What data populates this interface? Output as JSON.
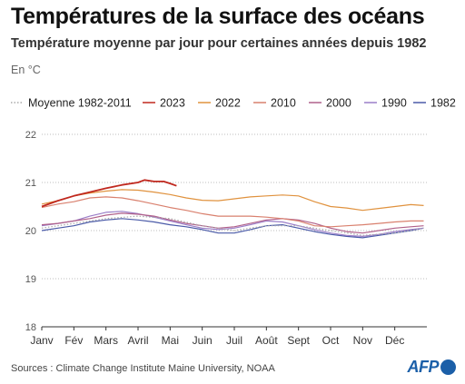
{
  "header": {
    "title": "Températures de la surface des océans",
    "subtitle": "Température moyenne par jour pour certaines années depuis 1982",
    "unit": "En °C"
  },
  "footer": {
    "source": "Sources : Climate Change Institute Maine University, NOAA",
    "logo_text": "AFP"
  },
  "chart_data": {
    "type": "line",
    "title": "Températures de la surface des océans",
    "subtitle": "Température moyenne par jour pour certaines années depuis 1982",
    "ylabel": "En °C",
    "xlabel": "",
    "x_ticks": [
      "Janv",
      "Fév",
      "Mars",
      "Avril",
      "Mai",
      "Juin",
      "Juil",
      "Août",
      "Sept",
      "Oct",
      "Nov",
      "Déc"
    ],
    "y_ticks": [
      18,
      19,
      20,
      21,
      22
    ],
    "ylim": [
      18,
      22
    ],
    "grid": true,
    "legend_position": "top",
    "series": [
      {
        "name": "Moyenne 1982-2011",
        "color": "#aaaaaa",
        "dashed": true,
        "x": [
          0,
          1,
          2,
          3,
          4,
          5,
          6,
          7,
          8,
          9,
          10,
          11,
          11.9
        ],
        "y": [
          20.05,
          20.15,
          20.25,
          20.3,
          20.25,
          20.1,
          20.0,
          20.1,
          20.1,
          20.0,
          19.9,
          19.95,
          20.05
        ]
      },
      {
        "name": "2023",
        "color": "#c0281e",
        "x": [
          0,
          0.5,
          1,
          1.5,
          2,
          2.5,
          3,
          3.2,
          3.5,
          3.8,
          4.0,
          4.2
        ],
        "y": [
          20.5,
          20.62,
          20.72,
          20.8,
          20.88,
          20.95,
          21.0,
          21.05,
          21.02,
          21.02,
          20.98,
          20.93
        ]
      },
      {
        "name": "2022",
        "color": "#e0923e",
        "x": [
          0,
          0.5,
          1,
          1.5,
          2,
          2.5,
          3,
          3.5,
          4,
          4.5,
          5,
          5.5,
          6,
          6.5,
          7,
          7.5,
          8,
          8.5,
          9,
          9.5,
          10,
          10.5,
          11,
          11.5,
          11.9
        ],
        "y": [
          20.55,
          20.62,
          20.72,
          20.78,
          20.82,
          20.85,
          20.84,
          20.8,
          20.75,
          20.68,
          20.63,
          20.62,
          20.66,
          20.7,
          20.72,
          20.74,
          20.72,
          20.6,
          20.5,
          20.47,
          20.42,
          20.46,
          20.5,
          20.54,
          20.52
        ]
      },
      {
        "name": "2010",
        "color": "#d9806e",
        "x": [
          0,
          0.5,
          1,
          1.5,
          2,
          2.5,
          3,
          3.5,
          4,
          4.5,
          5,
          5.5,
          6,
          6.5,
          7,
          7.5,
          8,
          8.5,
          9,
          9.5,
          10,
          10.5,
          11,
          11.5,
          11.9
        ],
        "y": [
          20.48,
          20.55,
          20.6,
          20.68,
          20.7,
          20.68,
          20.62,
          20.55,
          20.48,
          20.42,
          20.35,
          20.3,
          20.3,
          20.3,
          20.28,
          20.25,
          20.2,
          20.1,
          20.08,
          20.1,
          20.12,
          20.15,
          20.18,
          20.2,
          20.2
        ]
      },
      {
        "name": "2000",
        "color": "#b0608a",
        "x": [
          0,
          0.5,
          1,
          1.5,
          2,
          2.5,
          3,
          3.5,
          4,
          4.5,
          5,
          5.5,
          6,
          6.5,
          7,
          7.5,
          8,
          8.5,
          9,
          9.5,
          10,
          10.5,
          11,
          11.5,
          11.9
        ],
        "y": [
          20.12,
          20.15,
          20.2,
          20.25,
          20.32,
          20.36,
          20.34,
          20.3,
          20.22,
          20.15,
          20.1,
          20.05,
          20.08,
          20.15,
          20.22,
          20.25,
          20.22,
          20.15,
          20.05,
          19.98,
          19.95,
          20.0,
          20.05,
          20.08,
          20.1
        ]
      },
      {
        "name": "1990",
        "color": "#9b7ec8",
        "x": [
          0,
          0.5,
          1,
          1.5,
          2,
          2.5,
          3,
          3.5,
          4,
          4.5,
          5,
          5.5,
          6,
          6.5,
          7,
          7.5,
          8,
          8.5,
          9,
          9.5,
          10,
          10.5,
          11,
          11.5,
          11.9
        ],
        "y": [
          20.1,
          20.15,
          20.2,
          20.3,
          20.38,
          20.4,
          20.35,
          20.28,
          20.2,
          20.12,
          20.05,
          20.02,
          20.05,
          20.12,
          20.2,
          20.18,
          20.1,
          20.02,
          19.95,
          19.9,
          19.88,
          19.92,
          19.98,
          20.02,
          20.05
        ]
      },
      {
        "name": "1982",
        "color": "#4a5aa8",
        "x": [
          0,
          0.5,
          1,
          1.5,
          2,
          2.5,
          3,
          3.5,
          4,
          4.5,
          5,
          5.5,
          6,
          6.5,
          7,
          7.5,
          8,
          8.5,
          9,
          9.5,
          10,
          10.5,
          11,
          11.5,
          11.9
        ],
        "y": [
          20.0,
          20.05,
          20.1,
          20.18,
          20.22,
          20.25,
          20.22,
          20.18,
          20.12,
          20.08,
          20.02,
          19.95,
          19.95,
          20.02,
          20.1,
          20.12,
          20.05,
          19.98,
          19.92,
          19.88,
          19.85,
          19.9,
          19.95,
          20.0,
          20.05
        ]
      }
    ]
  }
}
